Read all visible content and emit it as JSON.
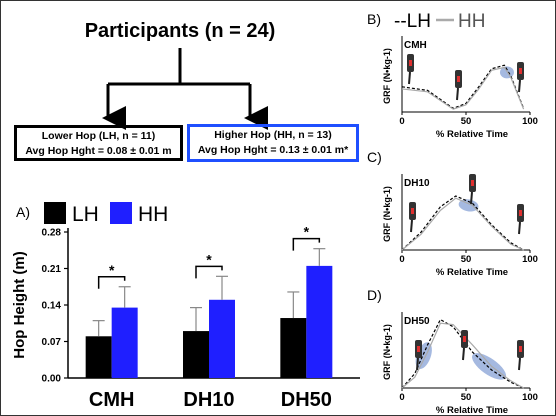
{
  "flowchart": {
    "title": "Participants (n = 24)",
    "lower_box": {
      "line1": "Lower Hop (LH, n = 11)",
      "line2": "Avg Hop Hght = 0.08 ± 0.01 m"
    },
    "higher_box": {
      "line1": "Higher Hop (HH, n = 13)",
      "line2": "Avg Hop Hght = 0.13 ± 0.01 m*"
    }
  },
  "colors": {
    "lh": "#000000",
    "hh": "#1f1fff",
    "hh_border": "#1f4fff",
    "highlight": "#8fa8d8"
  },
  "panel_a": {
    "letter": "A)"
  },
  "panel_b": {
    "letter": "B)",
    "legend_lh": "--LH",
    "legend_hh": "HH",
    "condition": "CMH"
  },
  "panel_c": {
    "letter": "C)",
    "condition": "DH10"
  },
  "panel_d": {
    "letter": "D)",
    "condition": "DH50"
  },
  "grf_axes": {
    "ylabel": "GRF (N•kg-1)",
    "xlabel": "% Relative Time",
    "xticks": [
      "0",
      "50",
      "100"
    ]
  },
  "chart_data": [
    {
      "type": "bar",
      "ylabel": "Hop  Height (m)",
      "categories": [
        "CMH",
        "DH10",
        "DH50"
      ],
      "series": [
        {
          "name": "LH",
          "values": [
            0.08,
            0.09,
            0.115
          ],
          "errors": [
            0.03,
            0.045,
            0.05
          ]
        },
        {
          "name": "HH",
          "values": [
            0.135,
            0.15,
            0.215
          ],
          "errors": [
            0.04,
            0.045,
            0.033
          ]
        }
      ],
      "yticks": [
        "0.00",
        "0.07",
        "0.14",
        "0.21",
        "0.28"
      ],
      "ylim": [
        0,
        0.28
      ],
      "significance": [
        "*",
        "*",
        "*"
      ],
      "legend": "top"
    },
    {
      "type": "line",
      "panel": "B",
      "title": "CMH",
      "xlim": [
        0,
        100
      ],
      "series": [
        {
          "name": "LH",
          "style": "dashed",
          "x": [
            0,
            20,
            40,
            50,
            60,
            70,
            80,
            85,
            95
          ],
          "y": [
            0.35,
            0.3,
            0.05,
            0.12,
            0.35,
            0.6,
            0.65,
            0.5,
            0.05
          ]
        },
        {
          "name": "HH",
          "style": "solid",
          "x": [
            0,
            20,
            40,
            50,
            60,
            70,
            80,
            85,
            95
          ],
          "y": [
            0.32,
            0.28,
            0.04,
            0.1,
            0.32,
            0.58,
            0.62,
            0.48,
            0.04
          ]
        }
      ]
    },
    {
      "type": "line",
      "panel": "C",
      "title": "DH10",
      "xlim": [
        0,
        100
      ],
      "series": [
        {
          "name": "LH",
          "style": "dashed",
          "x": [
            0,
            15,
            30,
            42,
            55,
            70,
            85,
            95
          ],
          "y": [
            0.0,
            0.25,
            0.6,
            0.75,
            0.65,
            0.35,
            0.1,
            0.0
          ]
        },
        {
          "name": "HH",
          "style": "solid",
          "x": [
            0,
            15,
            30,
            42,
            55,
            70,
            85,
            95
          ],
          "y": [
            0.0,
            0.22,
            0.55,
            0.72,
            0.62,
            0.33,
            0.08,
            0.0
          ]
        }
      ]
    },
    {
      "type": "line",
      "panel": "D",
      "title": "DH50",
      "xlim": [
        0,
        100
      ],
      "series": [
        {
          "name": "LH",
          "style": "dashed",
          "x": [
            0,
            10,
            20,
            30,
            40,
            55,
            70,
            85,
            95
          ],
          "y": [
            0.0,
            0.2,
            0.6,
            0.95,
            0.85,
            0.5,
            0.25,
            0.08,
            0.0
          ]
        },
        {
          "name": "HH",
          "style": "solid",
          "x": [
            0,
            10,
            20,
            30,
            40,
            55,
            70,
            85,
            95
          ],
          "y": [
            0.0,
            0.15,
            0.5,
            0.9,
            0.88,
            0.6,
            0.3,
            0.1,
            0.0
          ]
        }
      ]
    }
  ]
}
